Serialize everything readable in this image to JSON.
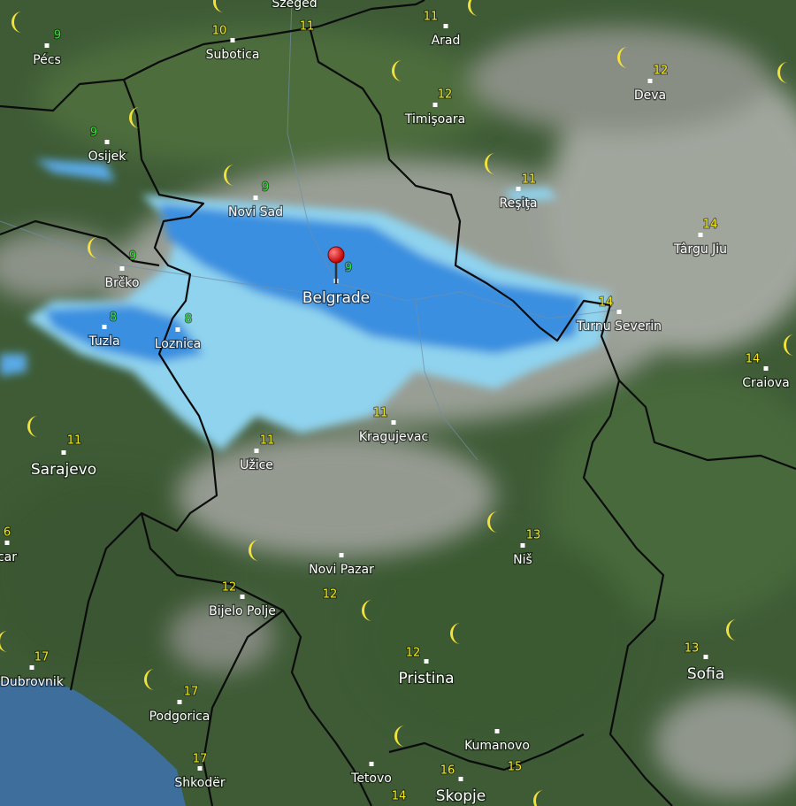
{
  "places": [
    {
      "name": "Pécs",
      "temp": 9
    },
    {
      "name": "Subotica",
      "temp": 10
    },
    {
      "name": "Szeged",
      "temp": 11
    },
    {
      "name": "Arad",
      "temp": 11
    },
    {
      "name": "Deva",
      "temp": 12
    },
    {
      "name": "Timişoara",
      "temp": 12
    },
    {
      "name": "Osijek",
      "temp": 9
    },
    {
      "name": "Novi Sad",
      "temp": 9
    },
    {
      "name": "Reşiţa",
      "temp": 11
    },
    {
      "name": "Târgu Jiu",
      "temp": 14
    },
    {
      "name": "Brčko",
      "temp": 9
    },
    {
      "name": "Belgrade",
      "temp": 9
    },
    {
      "name": "Tuzla",
      "temp": 8
    },
    {
      "name": "Loznica",
      "temp": 8
    },
    {
      "name": "Turnu Severin",
      "temp": 14
    },
    {
      "name": "Craiova",
      "temp": 14
    },
    {
      "name": "Kragujevac",
      "temp": 11
    },
    {
      "name": "Sarajevo",
      "temp": 11
    },
    {
      "name": "Užice",
      "temp": 11
    },
    {
      "name": "Niš",
      "temp": 13
    },
    {
      "name": "car",
      "temp": 6
    },
    {
      "name": "Novi Pazar",
      "temp": 12
    },
    {
      "name": "Bijelo Polje",
      "temp": 12
    },
    {
      "name": "Dubrovnik",
      "temp": 17
    },
    {
      "name": "Pristina",
      "temp": 12
    },
    {
      "name": "Sofia",
      "temp": 13
    },
    {
      "name": "Podgorica",
      "temp": 17
    },
    {
      "name": "Kumanovo",
      "temp": 15
    },
    {
      "name": "Shkodër",
      "temp": 17
    },
    {
      "name": "Tetovo",
      "temp": 14
    },
    {
      "name": "Skopje",
      "temp": 16
    }
  ]
}
